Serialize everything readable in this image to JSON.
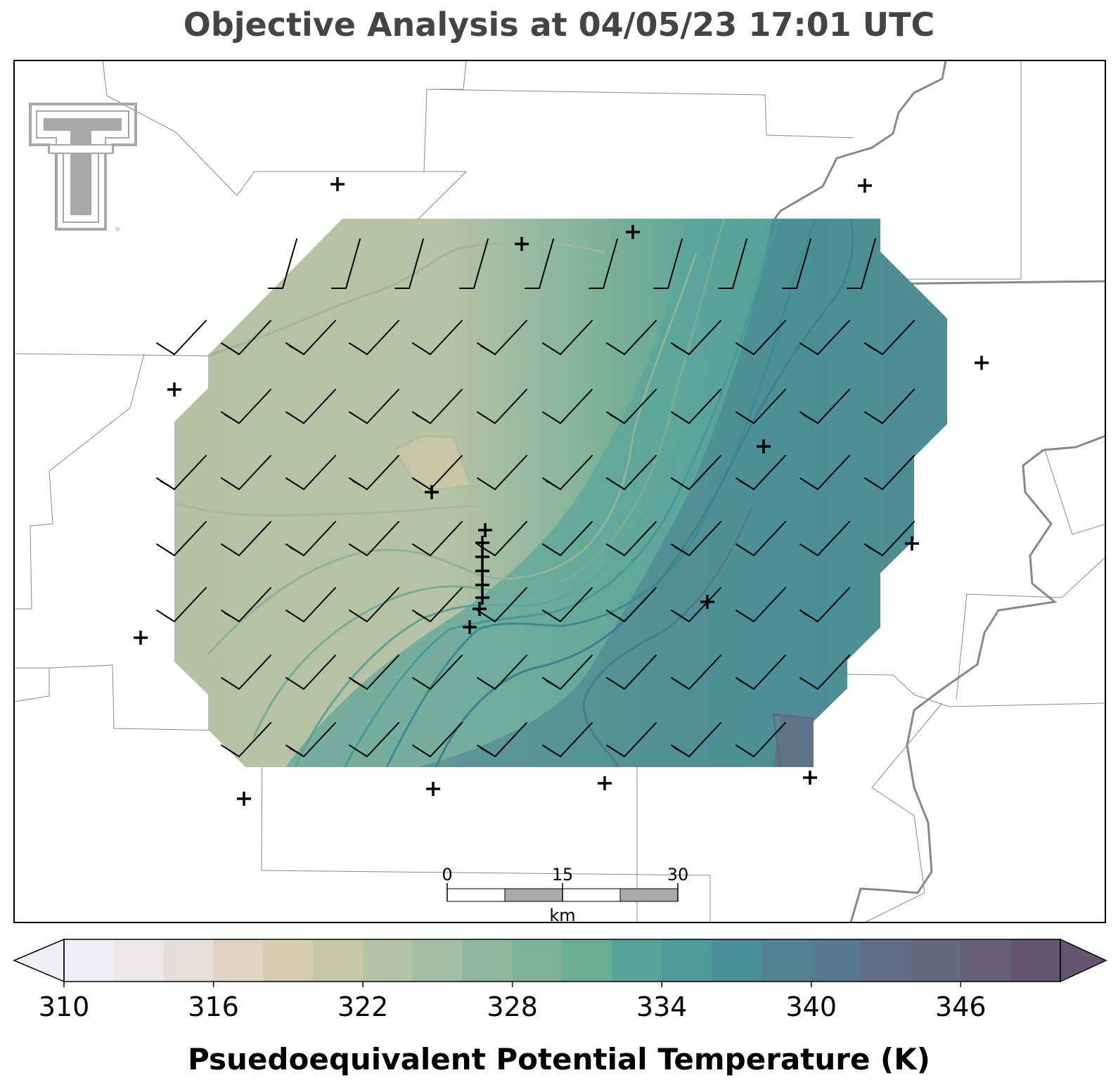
{
  "title": "Objective Analysis at 04/05/23 17:01 UTC",
  "colorbar": {
    "label": "Psuedoequivalent Potential Temperature (K)",
    "ticks": [
      "310",
      "316",
      "322",
      "328",
      "334",
      "340",
      "346"
    ],
    "min": 310,
    "max": 350,
    "step": 2,
    "extend": "both",
    "colors": [
      "#efedf5",
      "#ebe7e8",
      "#e6dfd9",
      "#e1d3c2",
      "#d6cdb0",
      "#c4c6a8",
      "#b3c4a6",
      "#a2bea0",
      "#8fb79b",
      "#7cb297",
      "#69ad95",
      "#56a598",
      "#4b9b9a",
      "#4b8f98",
      "#508493",
      "#577891",
      "#5f6f88",
      "#636a80",
      "#655f77",
      "#645670"
    ]
  },
  "scale_bar": {
    "labels": [
      "0",
      "15",
      "30"
    ],
    "unit": "km"
  },
  "logo": {
    "name": "Texas Tech Double T",
    "color": "#a8a8a8"
  },
  "field": {
    "variable": "theta_e",
    "units": "K",
    "region_min": 320,
    "region_max": 342
  }
}
